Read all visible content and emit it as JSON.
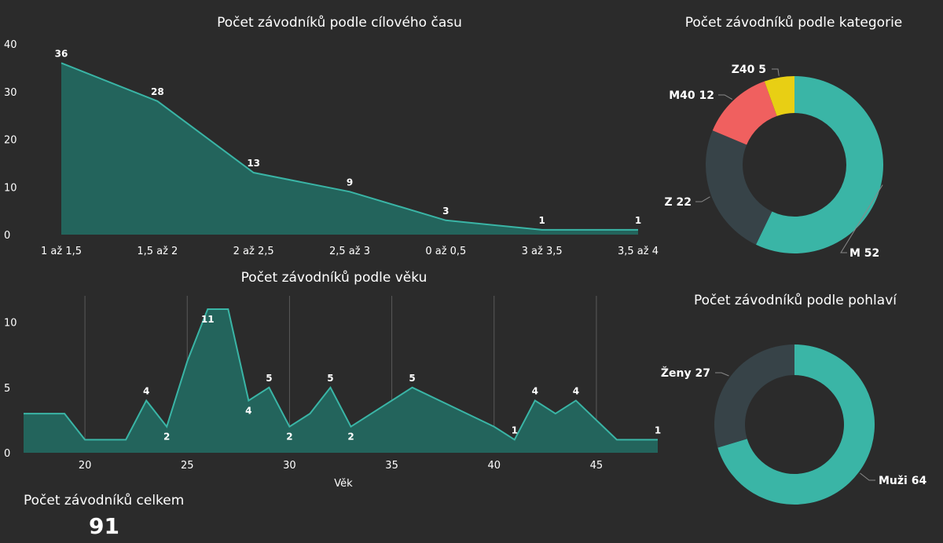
{
  "charts": {
    "time": {
      "title": "Počet závodníků podle cílového času"
    },
    "age": {
      "title": "Počet závodníků podle věku",
      "xlabel": "Věk"
    },
    "category": {
      "title": "Počet závodníků podle kategorie"
    },
    "gender": {
      "title": "Počet závodníků podle pohlaví"
    }
  },
  "summary": {
    "label": "Počet závodníků celkem",
    "value": "91"
  },
  "chart_data": [
    {
      "type": "area",
      "title": "Počet závodníků podle cílového času",
      "categories": [
        "1 až 1,5",
        "1,5 až 2",
        "2 až 2,5",
        "2,5 až 3",
        "0 až 0,5",
        "3 až 3,5",
        "3,5 až 4"
      ],
      "values": [
        36,
        28,
        13,
        9,
        3,
        1,
        1
      ],
      "ylim": [
        0,
        40
      ],
      "yticks": [
        0,
        10,
        20,
        30,
        40
      ],
      "color": "#3ab5a6",
      "fill": "#23645c"
    },
    {
      "type": "area",
      "title": "Počet závodníků podle věku",
      "xlabel": "Věk",
      "x": [
        17,
        18,
        19,
        20,
        22,
        23,
        24,
        25,
        26,
        27,
        28,
        29,
        30,
        31,
        32,
        33,
        36,
        40,
        41,
        42,
        43,
        44,
        46,
        48
      ],
      "values": [
        3,
        3,
        3,
        1,
        1,
        4,
        2,
        7,
        11,
        11,
        4,
        5,
        2,
        3,
        5,
        2,
        5,
        2,
        1,
        4,
        3,
        4,
        1,
        1
      ],
      "labels": [
        {
          "x": 23,
          "text": "4",
          "pos": "above"
        },
        {
          "x": 24,
          "text": "2",
          "pos": "below"
        },
        {
          "x": 26,
          "text": "11",
          "pos": "below"
        },
        {
          "x": 28,
          "text": "4",
          "pos": "below"
        },
        {
          "x": 29,
          "text": "5",
          "pos": "above"
        },
        {
          "x": 30,
          "text": "2",
          "pos": "below"
        },
        {
          "x": 32,
          "text": "5",
          "pos": "above"
        },
        {
          "x": 33,
          "text": "2",
          "pos": "below"
        },
        {
          "x": 36,
          "text": "5",
          "pos": "above"
        },
        {
          "x": 41,
          "text": "1",
          "pos": "above"
        },
        {
          "x": 42,
          "text": "4",
          "pos": "above"
        },
        {
          "x": 44,
          "text": "4",
          "pos": "above"
        },
        {
          "x": 48,
          "text": "1",
          "pos": "above"
        }
      ],
      "xlim": [
        17,
        48
      ],
      "xticks": [
        20,
        25,
        30,
        35,
        40,
        45
      ],
      "ylim": [
        0,
        11
      ],
      "yticks": [
        0,
        5,
        10
      ],
      "grid": "vertical",
      "color": "#3ab5a6",
      "fill": "#23645c"
    },
    {
      "type": "pie",
      "title": "Počet závodníků podle kategorie",
      "slices": [
        {
          "name": "M",
          "value": 52,
          "color": "#3ab5a6"
        },
        {
          "name": "Z",
          "value": 22,
          "color": "#374348"
        },
        {
          "name": "M40",
          "value": 12,
          "color": "#f0605f"
        },
        {
          "name": "Z40",
          "value": 5,
          "color": "#e8cf14"
        }
      ]
    },
    {
      "type": "pie",
      "title": "Počet závodníků podle pohlaví",
      "slices": [
        {
          "name": "Muži",
          "value": 64,
          "color": "#3ab5a6"
        },
        {
          "name": "Ženy",
          "value": 27,
          "color": "#374348"
        }
      ]
    }
  ]
}
